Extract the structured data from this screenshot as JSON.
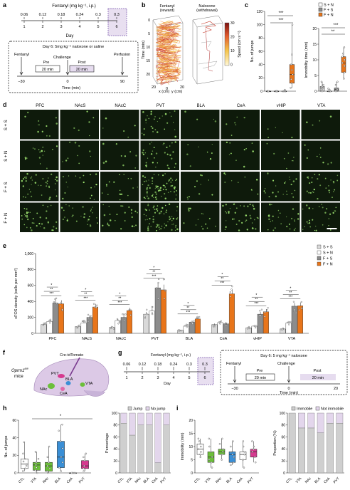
{
  "colors": {
    "SS": "#d9d9d9",
    "SN": "#ffffff",
    "FS": "#8c8c8c",
    "FN": "#e8751a",
    "lavender": "#d9cbe6",
    "green": "#6cbf3a",
    "blue": "#3a8fd6",
    "magenta": "#d63a8f",
    "fluor": "#9be06e",
    "micro_bg": "#0e1a0b"
  },
  "panel_a": {
    "letter": "a",
    "title": "Fentanyl (mg kg⁻¹, i.p.)",
    "doses": [
      "0.06",
      "0.12",
      "0.18",
      "0.24",
      "0.3",
      "0.3"
    ],
    "days": [
      "1",
      "2",
      "3",
      "4",
      "5",
      "6"
    ],
    "xlabel": "Day",
    "inset_title": "Day 6: 5mg kg⁻¹ naloxone or saline",
    "fentanyl": "Fentanyl",
    "challenge": "Challenge",
    "perfusion": "Perfusion",
    "pre": "Pre",
    "post": "Post",
    "pre_dur": "20 min",
    "post_dur": "20 min",
    "ticks": [
      "−30",
      "0",
      "90"
    ],
    "time_label": "Time (min)"
  },
  "panel_b": {
    "letter": "b",
    "left_title": "Fentanyl\n(reward)",
    "right_title": "Naloxone\n(withdrawal)",
    "zlabel": "Time (min)",
    "zticks": [
      "0",
      "5",
      "10",
      "15",
      "20"
    ],
    "xlabel": "x (cm)",
    "ylabel": "y (cm)",
    "axis_ticks": [
      "20",
      "0",
      "20"
    ],
    "cbar_label": "Speed (cm s⁻¹)",
    "cbar_ticks": [
      "30",
      "20",
      "10",
      "0"
    ]
  },
  "panel_c": {
    "letter": "c",
    "legend": [
      "S + N",
      "F + S",
      "F + N",
      "S + S"
    ],
    "sig": [
      "***",
      "***",
      "***",
      "**"
    ]
  },
  "panel_d": {
    "letter": "d",
    "regions": [
      "PFC",
      "NAcS",
      "NAcC",
      "PVT",
      "BLA",
      "CeA",
      "vHIP",
      "VTA"
    ],
    "rows": [
      "S + S",
      "S + N",
      "F + S",
      "F + N"
    ]
  },
  "panel_e": {
    "letter": "e",
    "legend": [
      "S + S",
      "S + N",
      "F + S",
      "F + N"
    ],
    "sig": [
      "***",
      "**",
      "*"
    ]
  },
  "panel_f": {
    "letter": "f",
    "mouse": "Oprm1",
    "mouse_sup": "fl/fl",
    "mice": "mice",
    "virus": "Cre-tdTomato",
    "areas": [
      "PVT",
      "BLA",
      "NAc",
      "CeA",
      "VTA"
    ]
  },
  "panel_g": {
    "letter": "g",
    "title": "Fentanyl (mg kg⁻¹, i.p.)",
    "doses": [
      "0.06",
      "0.12",
      "0.18",
      "0.24",
      "0.3",
      "0.3"
    ],
    "days": [
      "1",
      "2",
      "3",
      "4",
      "5",
      "6"
    ],
    "xlabel": "Day",
    "inset_title": "Day 6: 5 mg kg⁻¹ naloxone",
    "fentanyl": "Fentanyl",
    "challenge": "Challenge",
    "pre": "Pre",
    "post": "Post",
    "pre_dur": "20 min",
    "post_dur": "20 min",
    "ticks": [
      "−30",
      "0",
      "20"
    ],
    "time_label": "Time (min)"
  },
  "panel_h": {
    "letter": "h",
    "sig": "*",
    "bar_legend": [
      "Jump",
      "No jump"
    ]
  },
  "panel_i": {
    "letter": "i",
    "bar_legend": [
      "Immobile",
      "Not immobile"
    ]
  },
  "chart_data": [
    {
      "id": "c-left",
      "type": "box",
      "categories": [
        "S + S",
        "S + N",
        "F + S",
        "F + N"
      ],
      "ylabel": "No. of jumps",
      "ylim": [
        0,
        120
      ],
      "yticks": [
        "0",
        "20",
        "40",
        "60",
        "80",
        "100",
        "120"
      ],
      "values": [
        [
          0,
          0,
          0,
          0,
          0,
          0
        ],
        [
          0,
          0,
          0,
          0,
          0,
          0
        ],
        [
          0,
          0,
          0,
          0,
          0,
          2
        ],
        [
          5,
          12,
          18,
          25,
          32,
          40,
          55,
          100
        ]
      ]
    },
    {
      "id": "c-right",
      "type": "box",
      "categories": [
        "S + S",
        "S + N",
        "F + S",
        "F + N"
      ],
      "ylabel": "Immobility time (min)",
      "ylim": [
        0,
        20
      ],
      "yticks": [
        "0",
        "5",
        "10",
        "15",
        "20"
      ],
      "values": [
        [
          0,
          0,
          0.5,
          1,
          1.5,
          2,
          3
        ],
        [
          0,
          0,
          0,
          0,
          0.3,
          0.8
        ],
        [
          0,
          0,
          0.5,
          1,
          2,
          3
        ],
        [
          4,
          6,
          8,
          9,
          10,
          11,
          12,
          14
        ]
      ]
    },
    {
      "id": "e",
      "type": "bar",
      "ylabel": "cFOS density (cells per mm²)",
      "ylim": [
        0,
        1000
      ],
      "yticks": [
        "0",
        "200",
        "400",
        "600",
        "800",
        "1,000"
      ],
      "categories": [
        "PFC",
        "NAcS",
        "NAcC",
        "PVT",
        "BLA",
        "CeA",
        "vHIP",
        "VTA"
      ],
      "series": [
        {
          "name": "S + S",
          "values": [
            110,
            85,
            75,
            240,
            40,
            110,
            70,
            55
          ]
        },
        {
          "name": "S + N",
          "values": [
            150,
            130,
            160,
            280,
            90,
            135,
            90,
            130
          ]
        },
        {
          "name": "F + S",
          "values": [
            380,
            200,
            200,
            570,
            140,
            120,
            240,
            340
          ]
        },
        {
          "name": "F + N",
          "values": [
            370,
            330,
            285,
            545,
            180,
            495,
            270,
            345
          ]
        }
      ]
    },
    {
      "id": "h-box",
      "type": "box",
      "categories": [
        "CTL",
        "VTA",
        "NAc",
        "BLA",
        "CeA",
        "PVT"
      ],
      "ylabel": "No. of jumps",
      "ylim": [
        0,
        60
      ],
      "yticks": [
        "0",
        "20",
        "40",
        "60"
      ],
      "values": [
        [
          2,
          5,
          8,
          10,
          13,
          16,
          22,
          35
        ],
        [
          0,
          3,
          6,
          9,
          12,
          16,
          24
        ],
        [
          0,
          2,
          5,
          8,
          12,
          18,
          30
        ],
        [
          2,
          6,
          12,
          18,
          28,
          36,
          48,
          55
        ],
        [
          0,
          0,
          0,
          0,
          0
        ],
        [
          2,
          5,
          8,
          14,
          18,
          22
        ]
      ]
    },
    {
      "id": "h-bar",
      "type": "bar",
      "categories": [
        "CTL",
        "VTA",
        "NAc",
        "BLA",
        "CeA",
        "PVT"
      ],
      "ylabel": "Percentage",
      "ylim": [
        0,
        100
      ],
      "yticks": [
        "0",
        "20",
        "40",
        "60",
        "80",
        "100"
      ],
      "series": [
        {
          "name": "Jump",
          "values": [
            83,
            63,
            80,
            80,
            17,
            80
          ]
        },
        {
          "name": "No jump",
          "values": [
            17,
            37,
            20,
            20,
            83,
            20
          ]
        }
      ]
    },
    {
      "id": "i-box",
      "type": "box",
      "categories": [
        "CTL",
        "VTA",
        "NAc",
        "BLA",
        "CeA",
        "PVT"
      ],
      "ylabel": "Immobility (min)",
      "ylim": [
        0,
        20
      ],
      "yticks": [
        "0",
        "5",
        "10",
        "15",
        "20"
      ],
      "values": [
        [
          6,
          7,
          8,
          9,
          10,
          11,
          12,
          13
        ],
        [
          2,
          4,
          5,
          6,
          8,
          10,
          13
        ],
        [
          5,
          7,
          8,
          9,
          11,
          13
        ],
        [
          3,
          4,
          6,
          7,
          8,
          10,
          12
        ],
        [
          2,
          5,
          7,
          8,
          10,
          12
        ],
        [
          4,
          6,
          8,
          9,
          10,
          12
        ]
      ]
    },
    {
      "id": "i-bar",
      "type": "bar",
      "categories": [
        "CTL",
        "VTA",
        "NAc",
        "BLA",
        "CeA",
        "PVT"
      ],
      "ylabel": "Proportion (%)",
      "ylim": [
        0,
        100
      ],
      "yticks": [
        "0",
        "20",
        "40",
        "60",
        "80",
        "100"
      ],
      "series": [
        {
          "name": "Immobile",
          "values": [
            100,
            75,
            75,
            67,
            83,
            83
          ]
        },
        {
          "name": "Not immobile",
          "values": [
            0,
            25,
            25,
            33,
            17,
            17
          ]
        }
      ]
    }
  ]
}
